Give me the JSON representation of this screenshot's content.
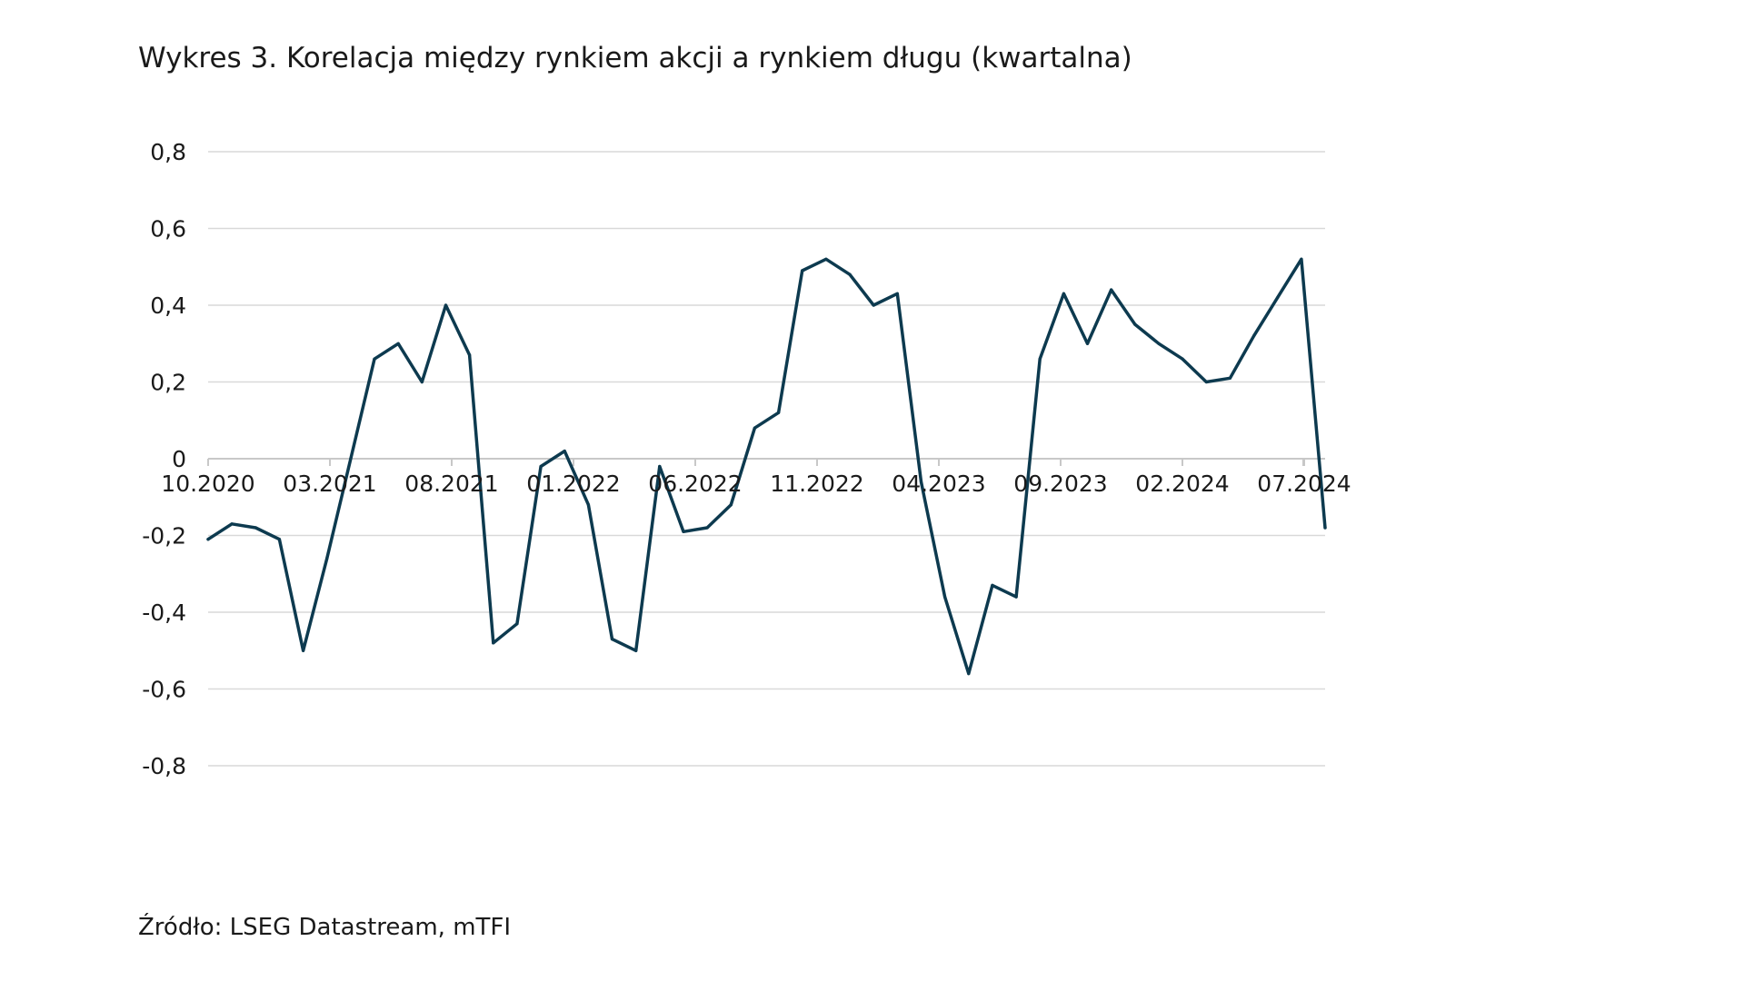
{
  "title": "Wykres 3. Korelacja między rynkiem akcji a rynkiem długu (kwartalna)",
  "source": "Źródło: LSEG Datastream, mTFI",
  "colors": {
    "line": "#0d3a4f",
    "grid": "#d9d9d9",
    "text": "#1a1a1a",
    "background": "#ffffff"
  },
  "chart_data": {
    "type": "line",
    "title": "Wykres 3. Korelacja między rynkiem akcji a rynkiem długu (kwartalna)",
    "xlabel": "",
    "ylabel": "",
    "grid": true,
    "legend": "none",
    "ylim": [
      -0.8,
      0.8
    ],
    "y_ticks": [
      0.8,
      0.6,
      0.4,
      0.2,
      0,
      -0.2,
      -0.4,
      -0.6,
      -0.8
    ],
    "y_tick_labels": [
      "0,8",
      "0,6",
      "0,4",
      "0,2",
      "0",
      "-0,2",
      "-0,4",
      "-0,6",
      "-0,8"
    ],
    "x_range": [
      "2020-10",
      "2024-09"
    ],
    "x_tick_labels": [
      "10.2020",
      "03.2021",
      "08.2021",
      "01.2022",
      "06.2022",
      "11.2022",
      "04.2023",
      "09.2023",
      "02.2024",
      "07.2024"
    ],
    "series": [
      {
        "x": [
          "2020-10",
          "2020-11",
          "2020-12",
          "2021-01",
          "2021-02",
          "2021-03",
          "2021-04",
          "2021-05",
          "2021-06",
          "2021-07",
          "2021-08",
          "2021-09",
          "2021-10",
          "2021-11",
          "2021-12",
          "2022-01",
          "2022-02",
          "2022-03",
          "2022-04",
          "2022-05",
          "2022-06",
          "2022-07",
          "2022-08",
          "2022-09",
          "2022-10",
          "2022-11",
          "2022-12",
          "2023-01",
          "2023-02",
          "2023-03",
          "2023-04",
          "2023-05",
          "2023-06",
          "2023-07",
          "2023-08",
          "2023-09",
          "2023-10",
          "2023-11",
          "2023-12",
          "2024-01",
          "2024-02",
          "2024-03",
          "2024-04",
          "2024-05",
          "2024-06",
          "2024-07",
          "2024-08",
          "2024-09"
        ],
        "values": [
          -0.21,
          -0.17,
          -0.18,
          -0.21,
          -0.5,
          -0.26,
          0.0,
          0.26,
          0.3,
          0.2,
          0.4,
          0.27,
          -0.48,
          -0.43,
          -0.02,
          0.02,
          -0.12,
          -0.47,
          -0.5,
          -0.02,
          -0.19,
          -0.18,
          -0.12,
          0.08,
          0.12,
          0.49,
          0.52,
          0.48,
          0.4,
          0.43,
          -0.06,
          -0.36,
          -0.56,
          -0.33,
          -0.36,
          0.26,
          0.43,
          0.3,
          0.44,
          0.35,
          0.3,
          0.26,
          0.2,
          0.21,
          0.32,
          0.42,
          0.52,
          -0.18
        ]
      }
    ]
  }
}
